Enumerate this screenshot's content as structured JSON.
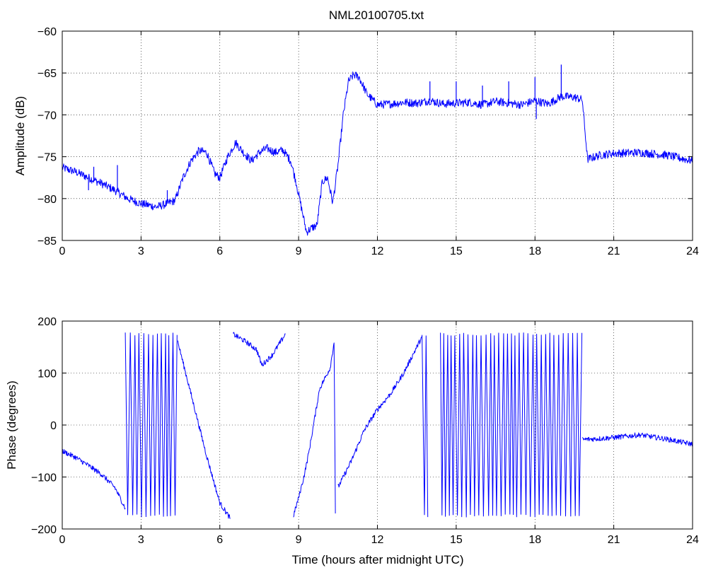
{
  "chart_data": [
    {
      "type": "line",
      "title": "NML20100705.txt",
      "xlabel": "",
      "ylabel": "Amplitude (dB)",
      "xlim": [
        0,
        24
      ],
      "ylim": [
        -85,
        -60
      ],
      "xticks": [
        "0",
        "3",
        "6",
        "9",
        "12",
        "15",
        "18",
        "21",
        "24"
      ],
      "yticks": [
        "-60",
        "-65",
        "-70",
        "-75",
        "-80",
        "-85"
      ],
      "grid": true,
      "color": "#0000ff",
      "series": [
        {
          "x": [
            0,
            0.5,
            1,
            1.5,
            2,
            2.5,
            3,
            3.3,
            3.6,
            4,
            4.3,
            4.6,
            4.9,
            5.2,
            5.5,
            5.8,
            6.0,
            6.3,
            6.6,
            6.9,
            7.2,
            7.5,
            7.8,
            8.1,
            8.4,
            8.7,
            8.9,
            9.1,
            9.3,
            9.5,
            9.7,
            9.9,
            10.1,
            10.3,
            10.5,
            10.7,
            10.9,
            11.1,
            11.3,
            11.6,
            12,
            12.5,
            13,
            13.5,
            14,
            14.5,
            15,
            15.5,
            16,
            16.5,
            17,
            17.5,
            18,
            18.5,
            19,
            19.5,
            19.8,
            20.0,
            20.5,
            21,
            22,
            23,
            24
          ],
          "y": [
            -76.3,
            -76.8,
            -77.5,
            -78.2,
            -79,
            -80,
            -80.6,
            -80.8,
            -81,
            -80.6,
            -80.2,
            -77.5,
            -75.5,
            -74.3,
            -74.5,
            -77,
            -77.5,
            -75,
            -73.3,
            -74.5,
            -75.5,
            -74.5,
            -74,
            -74.5,
            -74.2,
            -75.5,
            -78,
            -81,
            -84,
            -83.5,
            -83.2,
            -78,
            -77.5,
            -80.5,
            -76,
            -70,
            -66,
            -65.2,
            -65.5,
            -67.5,
            -68.8,
            -68.7,
            -68.5,
            -68.6,
            -68.3,
            -68.7,
            -68.6,
            -68.5,
            -68.8,
            -68.4,
            -68.6,
            -68.8,
            -68.3,
            -68.7,
            -67.8,
            -67.9,
            -68.2,
            -75.3,
            -74.8,
            -74.6,
            -74.5,
            -74.8,
            -75.5
          ],
          "spikes": [
            {
              "x": 1.0,
              "y": -79.0
            },
            {
              "x": 1.2,
              "y": -76.2
            },
            {
              "x": 2.1,
              "y": -76.0
            },
            {
              "x": 4.0,
              "y": -79.0
            },
            {
              "x": 14.0,
              "y": -66.0
            },
            {
              "x": 15.0,
              "y": -66.0
            },
            {
              "x": 16.0,
              "y": -66.5
            },
            {
              "x": 17.0,
              "y": -66.0
            },
            {
              "x": 18.0,
              "y": -65.5
            },
            {
              "x": 18.05,
              "y": -70.5
            },
            {
              "x": 19.0,
              "y": -64.0
            }
          ]
        }
      ]
    },
    {
      "type": "line",
      "title": "",
      "xlabel": "Time (hours after midnight UTC)",
      "ylabel": "Phase (degrees)",
      "xlim": [
        0,
        24
      ],
      "ylim": [
        -200,
        200
      ],
      "xticks": [
        "0",
        "3",
        "6",
        "9",
        "12",
        "15",
        "18",
        "21",
        "24"
      ],
      "yticks": [
        "200",
        "100",
        "0",
        "-100",
        "-200"
      ],
      "grid": true,
      "color": "#0000ff",
      "series": [
        {
          "x": [
            0,
            0.5,
            1.0,
            1.5,
            2.0,
            2.4
          ],
          "y": [
            -50,
            -62,
            -78,
            -95,
            -120,
            -160
          ]
        },
        {
          "x": [
            4.4,
            5.0,
            5.5,
            6.0,
            6.4
          ],
          "y": [
            160,
            40,
            -60,
            -150,
            -180
          ]
        },
        {
          "x": [
            6.5,
            7.0,
            7.4,
            7.6,
            8.0,
            8.5
          ],
          "y": [
            175,
            160,
            145,
            115,
            135,
            175
          ]
        },
        {
          "x": [
            8.8,
            9.0,
            9.2,
            9.4,
            9.6,
            9.8,
            10.0,
            10.2,
            10.35,
            10.4
          ],
          "y": [
            -175,
            -140,
            -100,
            -50,
            10,
            70,
            90,
            110,
            160,
            -170
          ]
        },
        {
          "x": [
            10.5,
            11,
            11.5,
            12,
            12.5,
            13,
            13.5,
            13.7
          ],
          "y": [
            -120,
            -70,
            -10,
            30,
            60,
            100,
            150,
            170
          ]
        },
        {
          "x": [
            19.8,
            20.5,
            21.0,
            22.0,
            23.0,
            24.0
          ],
          "y": [
            -28,
            -26,
            -24,
            -19,
            -27,
            -37
          ]
        }
      ],
      "oscillation_bands": [
        {
          "x": [
            2.4,
            4.4
          ],
          "y_min": -178,
          "y_max": 178
        },
        {
          "x": [
            13.7,
            14.0
          ],
          "y_min": -178,
          "y_max": 178
        },
        {
          "x": [
            14.4,
            19.8
          ],
          "y_min": -178,
          "y_max": 178
        }
      ]
    }
  ]
}
